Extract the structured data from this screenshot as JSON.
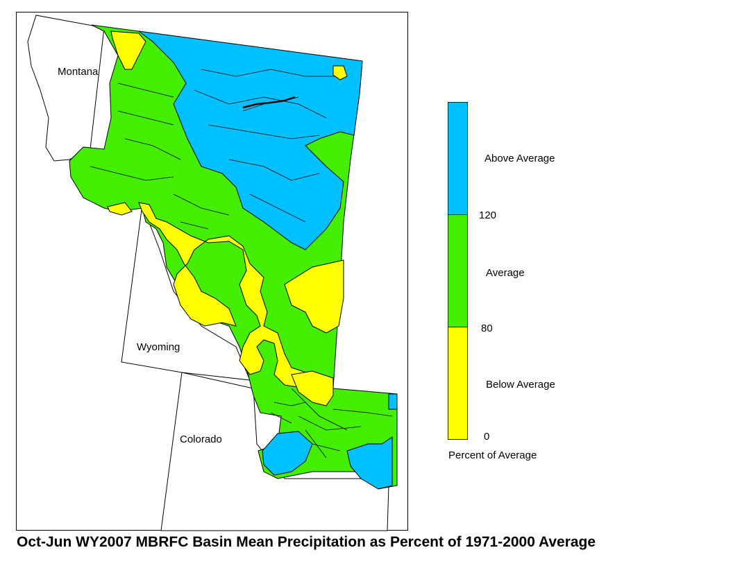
{
  "title": "Oct-Jun WY2007 MBRFC Basin Mean Precipitation as Percent of 1971-2000 Average",
  "states": {
    "montana": "Montana",
    "wyoming": "Wyoming",
    "colorado": "Colorado"
  },
  "legend": {
    "caption": "Percent of Average",
    "colors": {
      "above": "#00c0ff",
      "average": "#44ee00",
      "below": "#ffff00"
    },
    "categories": {
      "above": "Above Average",
      "average": "Average",
      "below": "Below Average"
    },
    "ticks": {
      "t120": "120",
      "t80": "80",
      "t0": "0"
    }
  }
}
